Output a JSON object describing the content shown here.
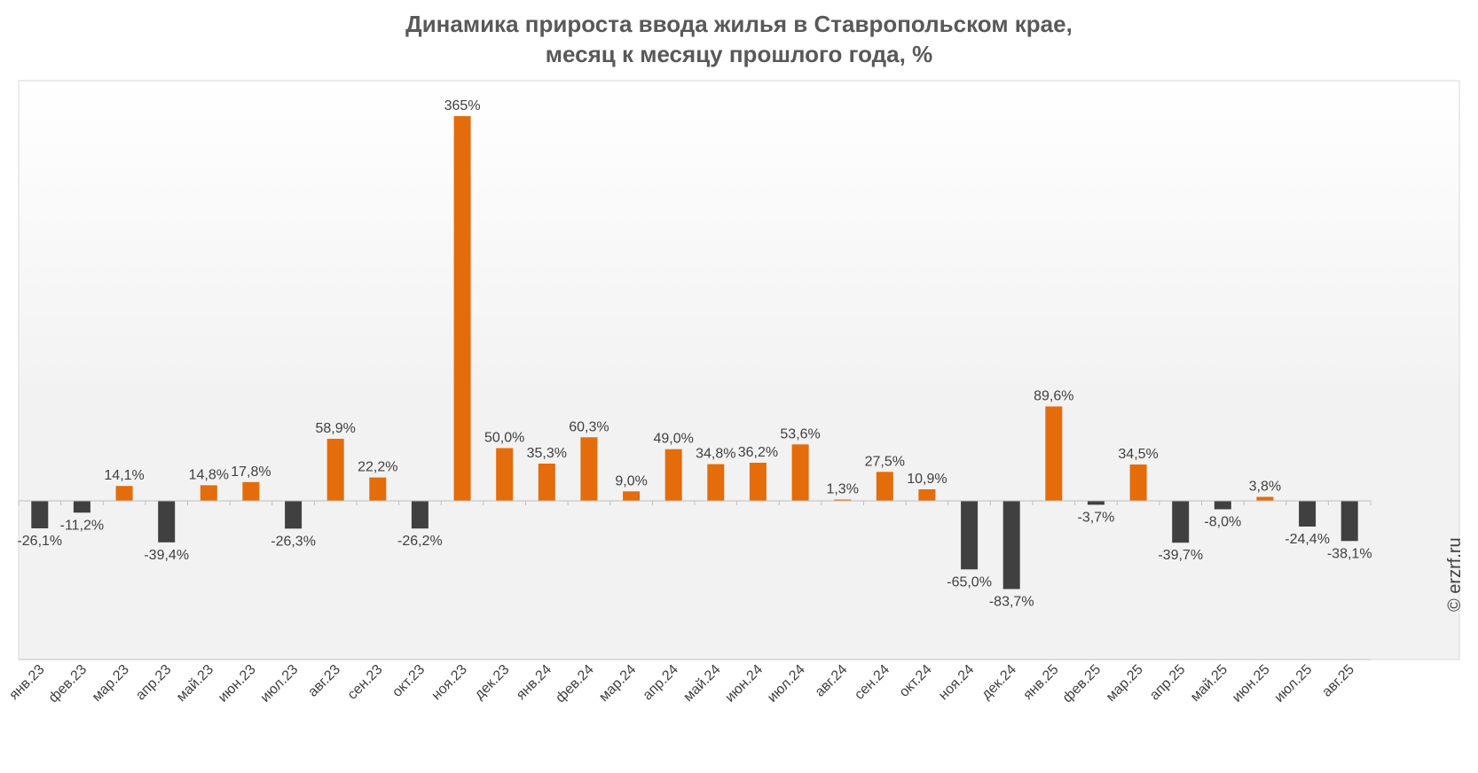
{
  "chart_data": {
    "type": "bar",
    "title_line1": "Динамика прироста ввода жилья в Ставропольском крае,",
    "title_line2": "месяц к месяцу прошлого года, %",
    "xlabel": "",
    "ylabel": "",
    "ylim": [
      -100,
      400
    ],
    "grid": false,
    "legend": "none",
    "colors": {
      "positive": "#E46C0A",
      "negative": "#404040",
      "axis": "#BFBFBF",
      "label": "#404040"
    },
    "categories": [
      "янв.23",
      "фев.23",
      "мар.23",
      "апр.23",
      "май.23",
      "июн.23",
      "июл.23",
      "авг.23",
      "сен.23",
      "окт.23",
      "ноя.23",
      "дек.23",
      "янв.24",
      "фев.24",
      "мар.24",
      "апр.24",
      "май.24",
      "июн.24",
      "июл.24",
      "авг.24",
      "сен.24",
      "окт.24",
      "ноя.24",
      "дек.24",
      "янв.25",
      "фев.25",
      "мар.25",
      "апр.25",
      "май.25",
      "июн.25",
      "июл.25",
      "авг.25"
    ],
    "values": [
      -26.1,
      -11.2,
      14.1,
      -39.4,
      14.8,
      17.8,
      -26.3,
      58.9,
      22.2,
      -26.2,
      365,
      50.0,
      35.3,
      60.3,
      9.0,
      49.0,
      34.8,
      36.2,
      53.6,
      1.3,
      27.5,
      10.9,
      -65.0,
      -83.7,
      89.6,
      -3.7,
      34.5,
      -39.7,
      -8.0,
      3.8,
      -24.4,
      -38.1
    ],
    "value_labels": [
      "-26,1%",
      "-11,2%",
      "14,1%",
      "-39,4%",
      "14,8%",
      "17,8%",
      "-26,3%",
      "58,9%",
      "22,2%",
      "-26,2%",
      "365%",
      "50,0%",
      "35,3%",
      "60,3%",
      "9,0%",
      "49,0%",
      "34,8%",
      "36,2%",
      "53,6%",
      "1,3%",
      "27,5%",
      "10,9%",
      "-65,0%",
      "-83,7%",
      "89,6%",
      "-3,7%",
      "34,5%",
      "-39,7%",
      "-8,0%",
      "3,8%",
      "-24,4%",
      "-38,1%"
    ]
  },
  "watermark": "© erzrf.ru"
}
